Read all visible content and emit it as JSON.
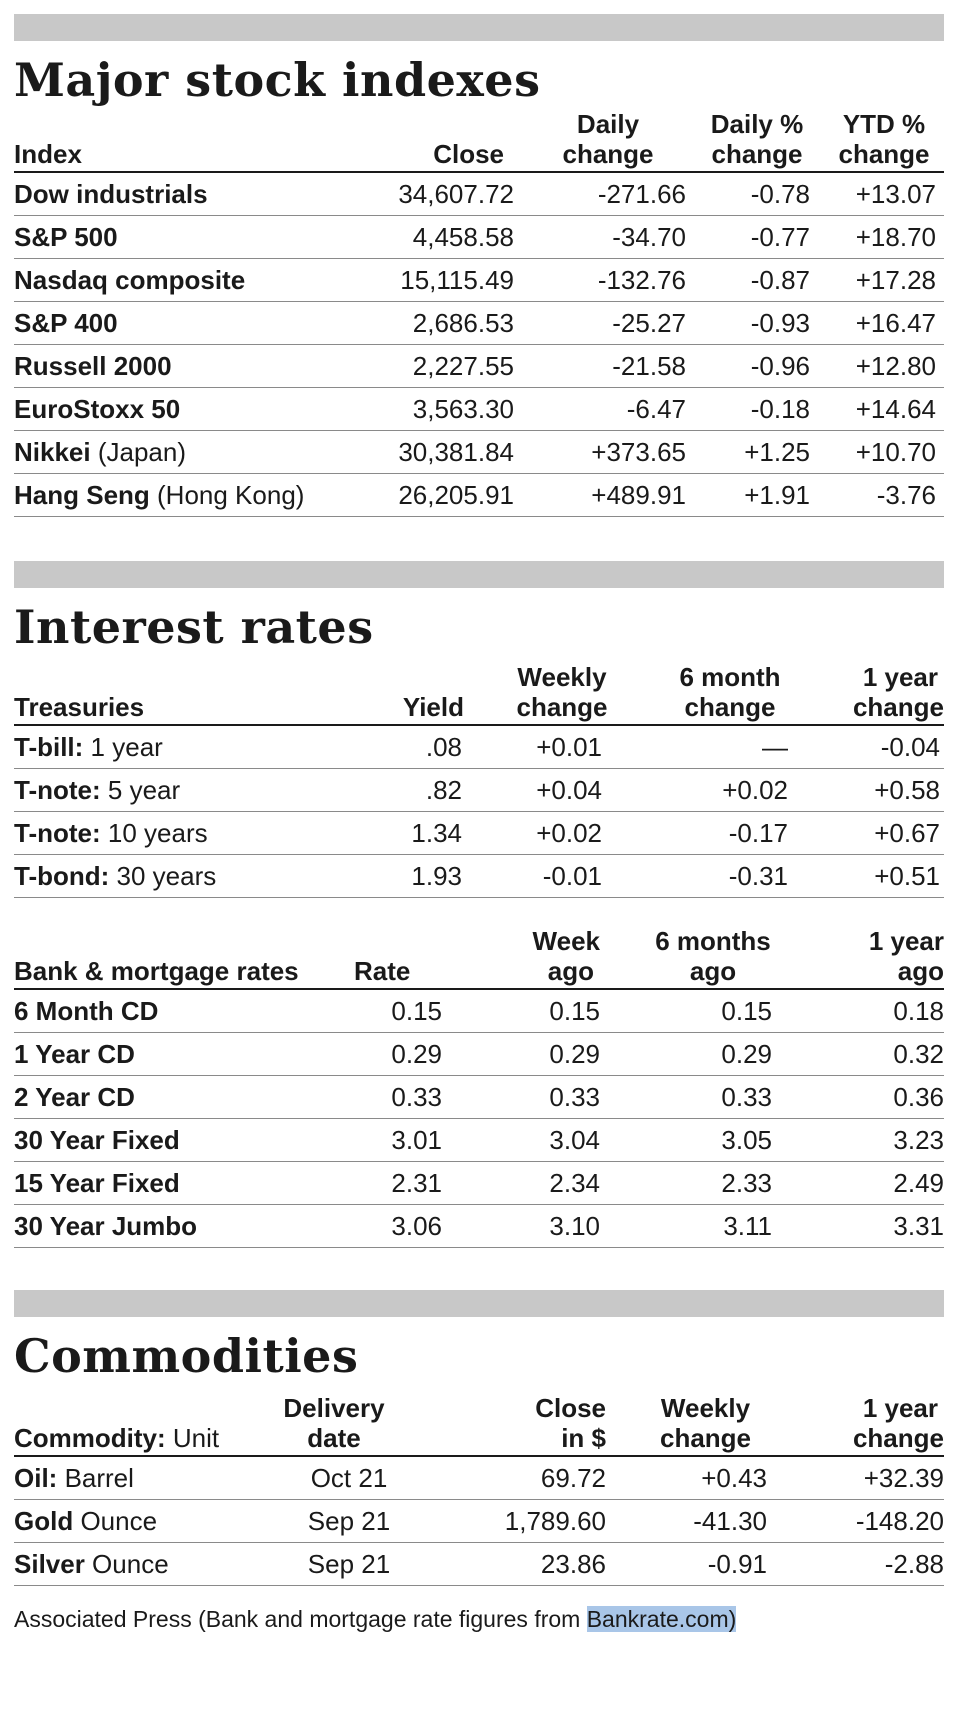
{
  "stocks": {
    "title": "Major stock indexes",
    "headers": {
      "index": "Index",
      "close": "Close",
      "daily_l1": "Daily",
      "daily_l2": "change",
      "dailypct_l1": "Daily %",
      "dailypct_l2": "change",
      "ytd_l1": "YTD %",
      "ytd_l2": "change"
    },
    "rows": [
      {
        "name": "Dow industrials",
        "sub": "",
        "close": "34,607.72",
        "daily": "-271.66",
        "pct": "-0.78",
        "ytd": "+13.07"
      },
      {
        "name": "S&P 500",
        "sub": "",
        "close": "4,458.58",
        "daily": "-34.70",
        "pct": "-0.77",
        "ytd": "+18.70"
      },
      {
        "name": "Nasdaq composite",
        "sub": "",
        "close": "15,115.49",
        "daily": "-132.76",
        "pct": "-0.87",
        "ytd": "+17.28"
      },
      {
        "name": "S&P 400",
        "sub": "",
        "close": "2,686.53",
        "daily": "-25.27",
        "pct": "-0.93",
        "ytd": "+16.47"
      },
      {
        "name": "Russell 2000",
        "sub": "",
        "close": "2,227.55",
        "daily": "-21.58",
        "pct": "-0.96",
        "ytd": "+12.80"
      },
      {
        "name": "EuroStoxx 50",
        "sub": "",
        "close": "3,563.30",
        "daily": "-6.47",
        "pct": "-0.18",
        "ytd": "+14.64"
      },
      {
        "name": "Nikkei",
        "sub": " (Japan)",
        "close": "30,381.84",
        "daily": "+373.65",
        "pct": "+1.25",
        "ytd": "+10.70"
      },
      {
        "name": "Hang Seng",
        "sub": " (Hong Kong)",
        "close": "26,205.91",
        "daily": "+489.91",
        "pct": "+1.91",
        "ytd": "-3.76"
      }
    ]
  },
  "rates": {
    "title": "Interest rates",
    "treasuries": {
      "headers": {
        "name": "Treasuries",
        "yield": "Yield",
        "weekly_l1": "Weekly",
        "weekly_l2": "change",
        "sixm_l1": "6 month",
        "sixm_l2": "change",
        "oney_l1": "1 year",
        "oney_l2": "change"
      },
      "rows": [
        {
          "name": "T-bill:",
          "sub": " 1 year",
          "yield": ".08",
          "weekly": "+0.01",
          "sixm": "—",
          "oney": "-0.04"
        },
        {
          "name": "T-note:",
          "sub": " 5 year",
          "yield": ".82",
          "weekly": "+0.04",
          "sixm": "+0.02",
          "oney": "+0.58"
        },
        {
          "name": "T-note:",
          "sub": " 10 years",
          "yield": "1.34",
          "weekly": "+0.02",
          "sixm": "-0.17",
          "oney": "+0.67"
        },
        {
          "name": "T-bond:",
          "sub": " 30 years",
          "yield": "1.93",
          "weekly": "-0.01",
          "sixm": "-0.31",
          "oney": "+0.51"
        }
      ]
    },
    "bank": {
      "headers": {
        "name": "Bank & mortgage rates",
        "rate": "Rate",
        "week_l1": "Week",
        "week_l2": "ago",
        "sixm_l1": "6 months",
        "sixm_l2": "ago",
        "oney_l1": "1 year",
        "oney_l2": "ago"
      },
      "rows": [
        {
          "name": "6 Month CD",
          "rate": "0.15",
          "week": "0.15",
          "sixm": "0.15",
          "oney": "0.18"
        },
        {
          "name": "1 Year CD",
          "rate": "0.29",
          "week": "0.29",
          "sixm": "0.29",
          "oney": "0.32"
        },
        {
          "name": "2 Year CD",
          "rate": "0.33",
          "week": "0.33",
          "sixm": "0.33",
          "oney": "0.36"
        },
        {
          "name": "30 Year Fixed",
          "rate": "3.01",
          "week": "3.04",
          "sixm": "3.05",
          "oney": "3.23"
        },
        {
          "name": "15 Year Fixed",
          "rate": "2.31",
          "week": "2.34",
          "sixm": "2.33",
          "oney": "2.49"
        },
        {
          "name": "30 Year Jumbo",
          "rate": "3.06",
          "week": "3.10",
          "sixm": "3.11",
          "oney": "3.31"
        }
      ]
    }
  },
  "commodities": {
    "title": "Commodities",
    "headers": {
      "name": "Commodity:",
      "unit": " Unit",
      "del_l1": "Delivery",
      "del_l2": "date",
      "close_l1": "Close",
      "close_l2": "in $",
      "weekly_l1": "Weekly",
      "weekly_l2": "change",
      "oney_l1": "1 year",
      "oney_l2": "change"
    },
    "rows": [
      {
        "name": "Oil:",
        "sub": " Barrel",
        "delivery": "Oct 21",
        "close": "69.72",
        "weekly": "+0.43",
        "oney": "+32.39"
      },
      {
        "name": "Gold",
        "sub": " Ounce",
        "delivery": "Sep 21",
        "close": "1,789.60",
        "weekly": "-41.30",
        "oney": "-148.20"
      },
      {
        "name": "Silver",
        "sub": " Ounce",
        "delivery": "Sep 21",
        "close": "23.86",
        "weekly": "-0.91",
        "oney": "-2.88"
      }
    ]
  },
  "footer": {
    "text": "Associated Press (Bank and mortgage rate figures from ",
    "link": "Bankrate.com",
    "end": ")"
  }
}
